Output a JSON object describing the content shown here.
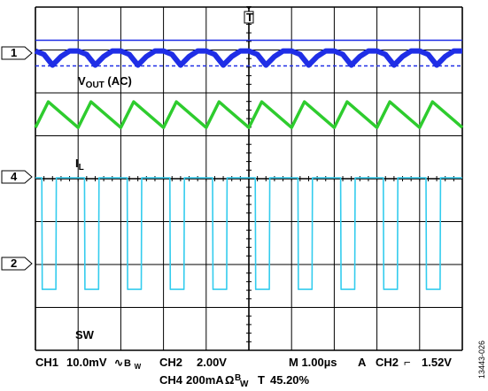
{
  "chart_data": {
    "type": "line",
    "title": "",
    "grid": true,
    "grid_divisions": {
      "horizontal": 10,
      "vertical": 8
    },
    "time_per_div_us": 1.0,
    "series": [
      {
        "name": "VOUT (AC)",
        "channel": 1,
        "color": "#1f2ee6",
        "marker_label": "1",
        "x_us": [
          0,
          0.2,
          0.4,
          0.6,
          0.8,
          1,
          1.2,
          1.4,
          1.6,
          1.8,
          2,
          2.2,
          2.4,
          2.6,
          2.8,
          3,
          3.2,
          3.4,
          3.6,
          3.8,
          4,
          4.2,
          4.4,
          4.6,
          4.8,
          5,
          5.2,
          5.4,
          5.6,
          5.8,
          6,
          6.2,
          6.4,
          6.6,
          6.8,
          7,
          7.2,
          7.4,
          7.6,
          7.8,
          8,
          8.2,
          8.4,
          8.6,
          8.8,
          9,
          9.2,
          9.4,
          9.6,
          9.8,
          10
        ],
        "y_div": [
          0.05,
          -0.03,
          -0.28,
          -0.08,
          0.05,
          0.05,
          -0.03,
          -0.28,
          -0.08,
          0.05,
          0.05,
          -0.03,
          -0.28,
          -0.08,
          0.05,
          0.05,
          -0.03,
          -0.28,
          -0.08,
          0.05,
          0.05,
          -0.03,
          -0.28,
          -0.08,
          0.05,
          0.05,
          -0.03,
          -0.28,
          -0.08,
          0.05,
          0.05,
          -0.03,
          -0.28,
          -0.08,
          0.05,
          0.05,
          -0.03,
          -0.28,
          -0.08,
          0.05,
          0.05,
          -0.03,
          -0.28,
          -0.08,
          0.05,
          0.05,
          -0.03,
          -0.28,
          -0.08,
          0.05,
          0.05
        ]
      },
      {
        "name": "IL",
        "channel": 4,
        "color": "#2ecc2e",
        "marker_label": "4",
        "x_us": [
          0,
          0.3,
          1,
          1.3,
          2,
          2.3,
          3,
          3.3,
          4,
          4.3,
          5,
          5.3,
          6,
          6.3,
          7,
          7.3,
          8,
          8.3,
          9,
          9.3,
          10
        ],
        "y_div": [
          1.15,
          1.75,
          1.15,
          1.75,
          1.15,
          1.75,
          1.15,
          1.75,
          1.15,
          1.75,
          1.15,
          1.75,
          1.15,
          1.75,
          1.15,
          1.75,
          1.15,
          1.75,
          1.15,
          1.75,
          1.15
        ]
      },
      {
        "name": "SW",
        "channel": 2,
        "color": "#33ccee",
        "marker_label": "2",
        "x_us": [
          0,
          0.15,
          0.16,
          0.48,
          0.49,
          1.15,
          1.16,
          1.48,
          1.49,
          2.15,
          2.16,
          2.48,
          2.49,
          3.15,
          3.16,
          3.48,
          3.49,
          4.15,
          4.16,
          4.48,
          4.49,
          5.15,
          5.16,
          5.48,
          5.49,
          6.15,
          6.16,
          6.48,
          6.49,
          7.15,
          7.16,
          7.48,
          7.49,
          8.15,
          8.16,
          8.48,
          8.49,
          9.15,
          9.16,
          9.48,
          9.49,
          10
        ],
        "y_div": [
          2.0,
          2.0,
          -0.6,
          -0.6,
          2.0,
          2.0,
          -0.6,
          -0.6,
          2.0,
          2.0,
          -0.6,
          -0.6,
          2.0,
          2.0,
          -0.6,
          -0.6,
          2.0,
          2.0,
          -0.6,
          -0.6,
          2.0,
          2.0,
          -0.6,
          -0.6,
          2.0,
          2.0,
          -0.6,
          -0.6,
          2.0,
          2.0,
          -0.6,
          -0.6,
          2.0,
          2.0,
          -0.6,
          -0.6,
          2.0,
          2.0,
          -0.6,
          -0.6,
          2.0,
          2.0
        ]
      }
    ],
    "trace_labels": {
      "vout_main": "V",
      "vout_sub": "OUT",
      "vout_suffix": " (AC)",
      "il_main": "I",
      "il_sub": "L",
      "sw": "SW"
    },
    "trigger_marker": "T",
    "readout_line1": [
      "CH1",
      "10.0mV",
      "∿",
      "B",
      "W",
      "CH2",
      "2.00V",
      "M 1.00µs",
      "A",
      "CH2",
      "⌐",
      "1.52V"
    ],
    "readout_line2": [
      "CH4",
      "200mA",
      "Ω",
      "B",
      "W",
      "T",
      "45.20%"
    ],
    "figure_id": "13443-026"
  }
}
